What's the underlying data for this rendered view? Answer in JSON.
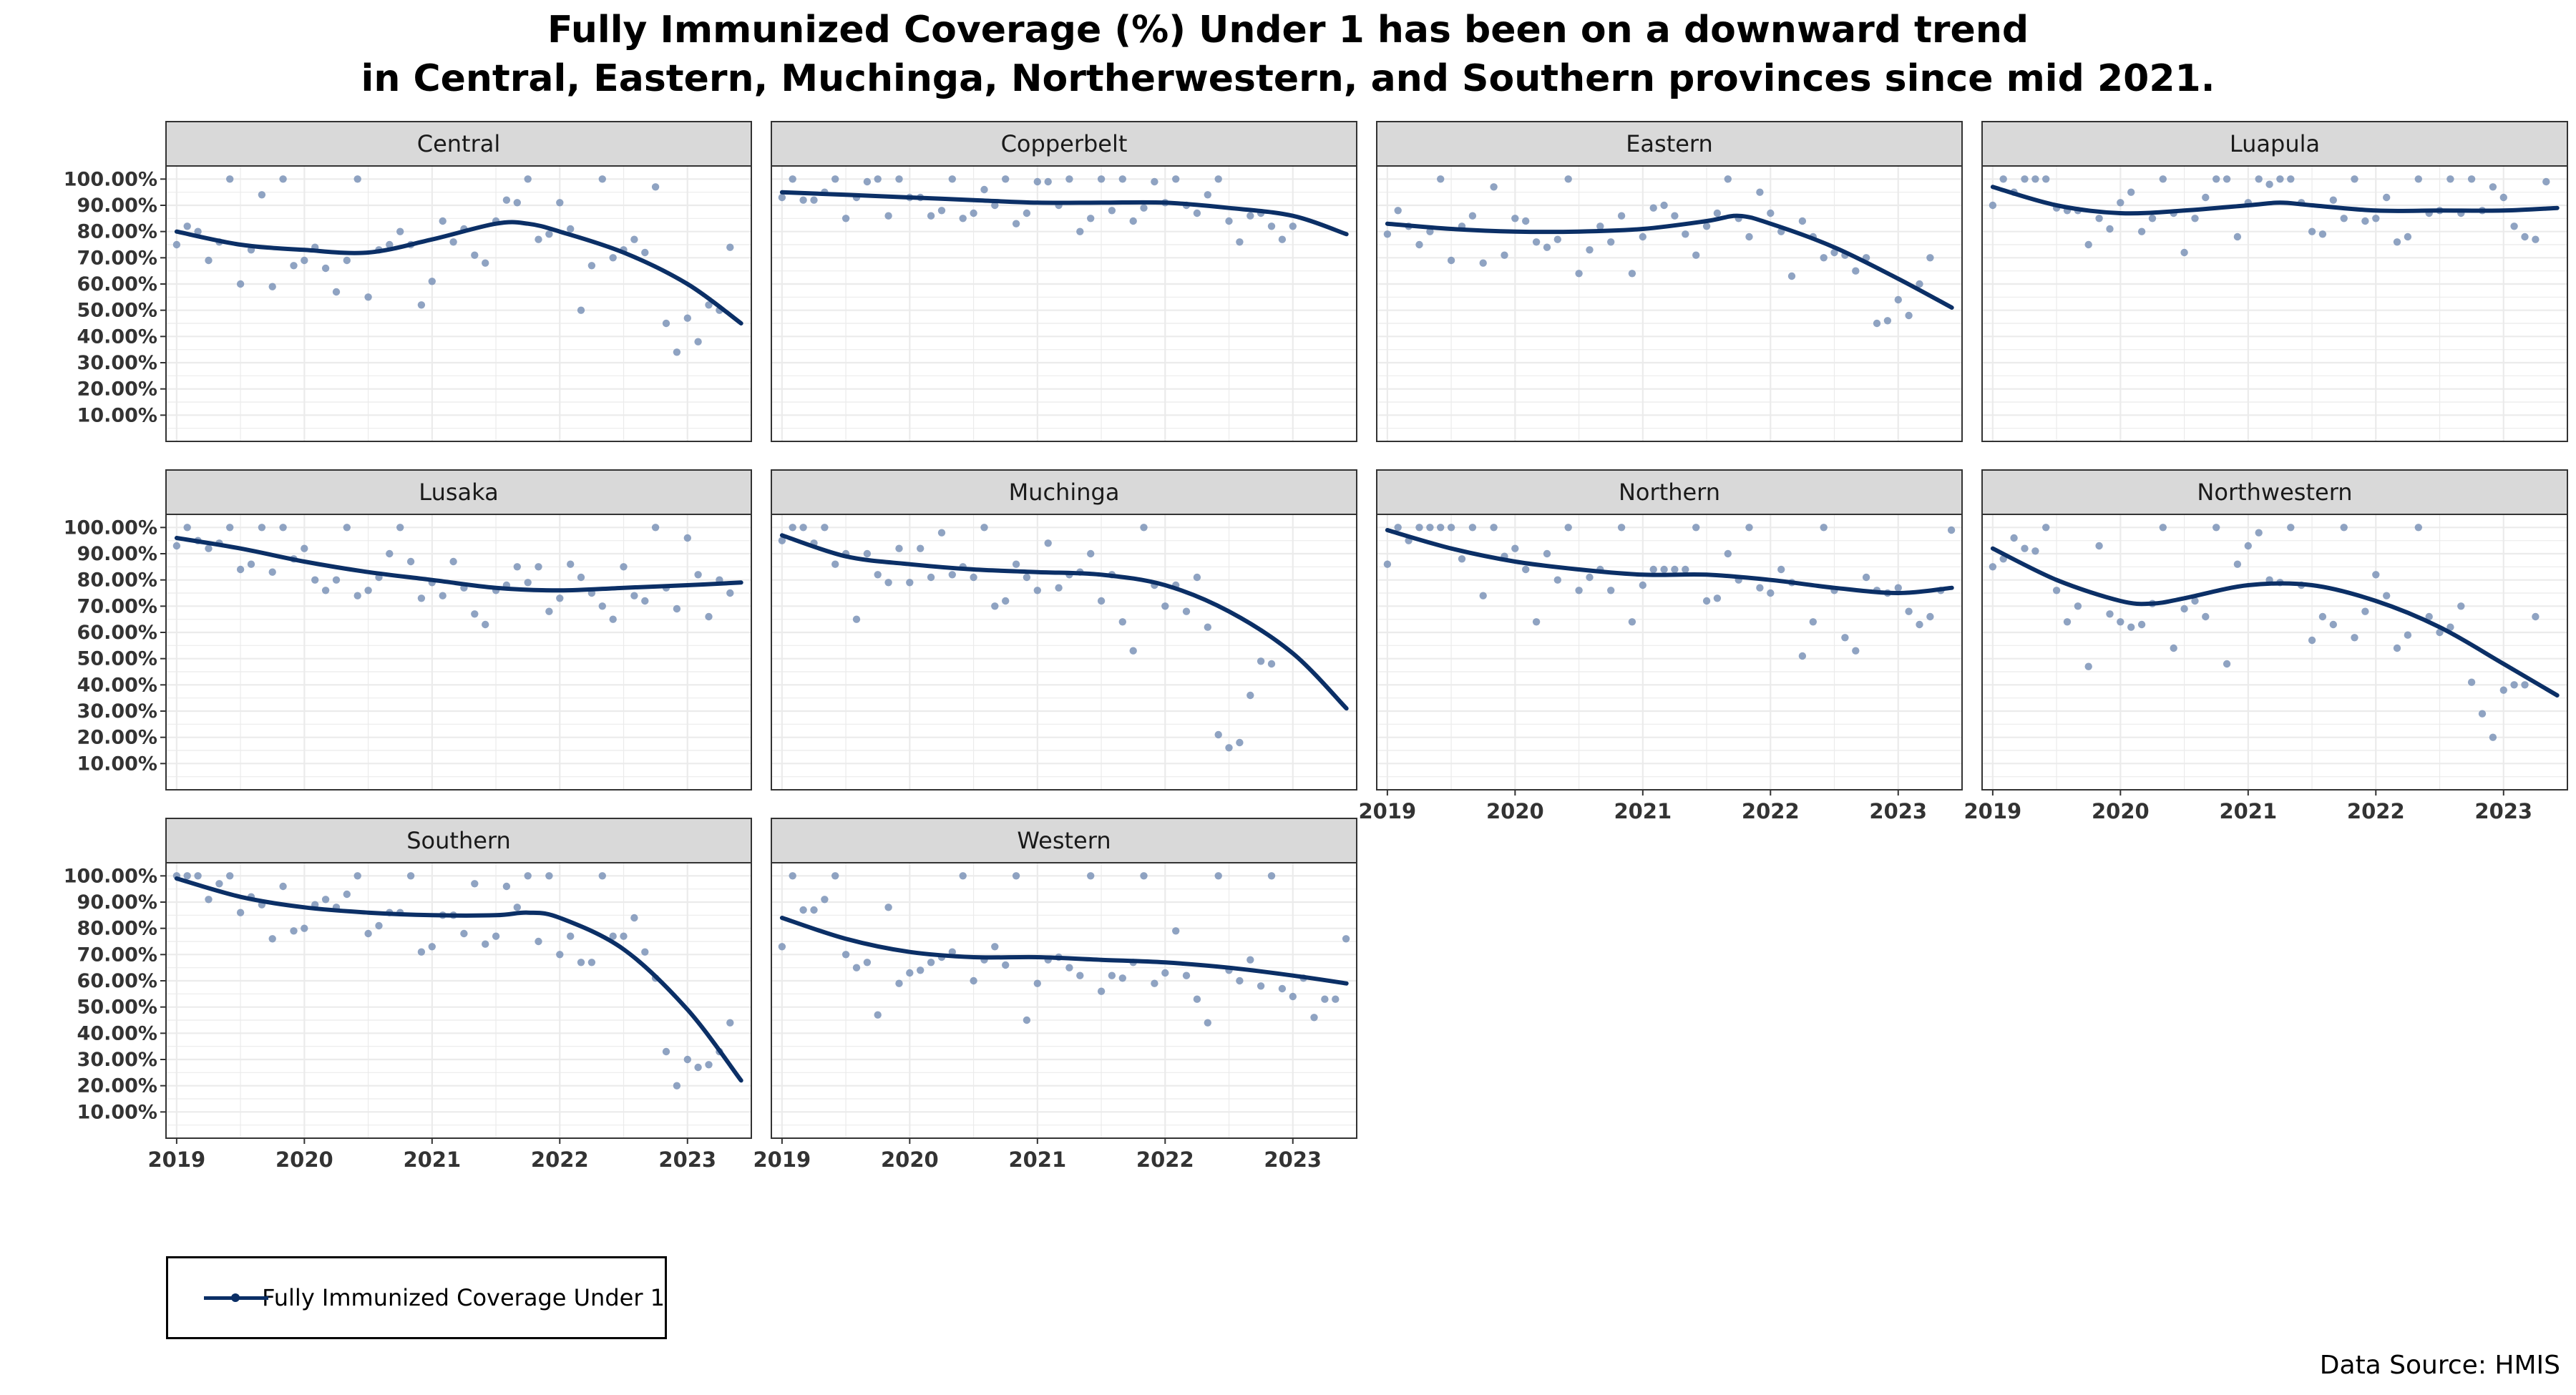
{
  "chart_data": {
    "type": "scatter",
    "title": "Fully Immunized Coverage (%) Under 1 has been on a downward trend\nin Central, Eastern, Muchinga, Northerwestern, and Southern provinces since mid 2021.",
    "title_lines": [
      "Fully Immunized Coverage (%) Under 1 has been on a downward trend",
      "in Central, Eastern, Muchinga, Northerwestern, and Southern provinces since mid 2021."
    ],
    "xlabel": "",
    "ylabel": "",
    "x_ticks": [
      "2019",
      "2020",
      "2021",
      "2022",
      "2023"
    ],
    "y_ticks": [
      "10.00%",
      "20.00%",
      "30.00%",
      "40.00%",
      "50.00%",
      "60.00%",
      "70.00%",
      "80.00%",
      "90.00%",
      "100.00%"
    ],
    "xlim": [
      "2018-12",
      "2023-07"
    ],
    "ylim": [
      0,
      105
    ],
    "grid": true,
    "legend": {
      "position": "bottom-left",
      "label": "Fully Immunized Coverage Under 1"
    },
    "source": "Data Source: HMIS",
    "colors": {
      "line": "#0b2f66",
      "points": "#7b93b7",
      "strip": "#d9d9d9",
      "grid": "#ebebeb"
    },
    "panels": [
      {
        "name": "Central",
        "values": [
          75,
          82,
          80,
          69,
          76,
          100,
          60,
          73,
          94,
          59,
          100,
          67,
          69,
          74,
          66,
          57,
          69,
          100,
          55,
          73,
          75,
          80,
          75,
          52,
          61,
          84,
          76,
          81,
          71,
          68,
          84,
          92,
          91,
          100,
          77,
          79,
          91,
          81,
          50,
          67,
          100,
          70,
          73,
          77,
          72,
          97,
          45,
          34,
          47,
          38,
          52,
          50,
          74
        ],
        "trend": [
          [
            2019.0,
            80
          ],
          [
            2019.5,
            75
          ],
          [
            2020.0,
            73
          ],
          [
            2020.5,
            72
          ],
          [
            2021.0,
            77
          ],
          [
            2021.5,
            83
          ],
          [
            2021.75,
            83
          ],
          [
            2022.0,
            80
          ],
          [
            2022.5,
            72
          ],
          [
            2023.0,
            60
          ],
          [
            2023.42,
            45
          ]
        ]
      },
      {
        "name": "Copperbelt",
        "values": [
          93,
          100,
          92,
          92,
          95,
          100,
          85,
          93,
          99,
          100,
          86,
          100,
          93,
          93,
          86,
          88,
          100,
          85,
          87,
          96,
          90,
          100,
          83,
          87,
          99,
          99,
          90,
          100,
          80,
          85,
          100,
          88,
          100,
          84,
          89,
          99,
          91,
          100,
          90,
          87,
          94,
          100,
          84,
          76,
          86,
          87,
          82,
          77,
          82
        ],
        "trend": [
          [
            2019.0,
            95
          ],
          [
            2019.5,
            94
          ],
          [
            2020.0,
            93
          ],
          [
            2020.5,
            92
          ],
          [
            2021.0,
            91
          ],
          [
            2021.5,
            91
          ],
          [
            2022.0,
            91
          ],
          [
            2022.5,
            89
          ],
          [
            2023.0,
            86
          ],
          [
            2023.42,
            79
          ]
        ]
      },
      {
        "name": "Eastern",
        "values": [
          79,
          88,
          82,
          75,
          80,
          100,
          69,
          82,
          86,
          68,
          97,
          71,
          85,
          84,
          76,
          74,
          77,
          100,
          64,
          73,
          82,
          76,
          86,
          64,
          78,
          89,
          90,
          86,
          79,
          71,
          82,
          87,
          100,
          85,
          78,
          95,
          87,
          80,
          63,
          84,
          78,
          70,
          72,
          71,
          65,
          70,
          45,
          46,
          54,
          48,
          60,
          70
        ],
        "trend": [
          [
            2019.0,
            83
          ],
          [
            2019.5,
            81
          ],
          [
            2020.0,
            80
          ],
          [
            2020.5,
            80
          ],
          [
            2021.0,
            81
          ],
          [
            2021.5,
            84
          ],
          [
            2021.75,
            86
          ],
          [
            2022.0,
            83
          ],
          [
            2022.5,
            74
          ],
          [
            2023.0,
            62
          ],
          [
            2023.42,
            51
          ]
        ]
      },
      {
        "name": "Luapula",
        "values": [
          90,
          100,
          95,
          100,
          100,
          100,
          89,
          88,
          88,
          75,
          85,
          81,
          91,
          95,
          80,
          85,
          100,
          87,
          72,
          85,
          93,
          100,
          100,
          78,
          91,
          100,
          98,
          100,
          100,
          91,
          80,
          79,
          92,
          85,
          100,
          84,
          85,
          93,
          76,
          78,
          100,
          87,
          88,
          100,
          87,
          100,
          88,
          97,
          93,
          82,
          78,
          77,
          99
        ],
        "trend": [
          [
            2019.0,
            97
          ],
          [
            2019.5,
            90
          ],
          [
            2020.0,
            87
          ],
          [
            2020.5,
            88
          ],
          [
            2021.0,
            90
          ],
          [
            2021.25,
            91
          ],
          [
            2021.5,
            90
          ],
          [
            2022.0,
            88
          ],
          [
            2022.5,
            88
          ],
          [
            2023.0,
            88
          ],
          [
            2023.42,
            89
          ]
        ]
      },
      {
        "name": "Lusaka",
        "values": [
          93,
          100,
          95,
          92,
          94,
          100,
          84,
          86,
          100,
          83,
          100,
          88,
          92,
          80,
          76,
          80,
          100,
          74,
          76,
          81,
          90,
          100,
          87,
          73,
          79,
          74,
          87,
          77,
          67,
          63,
          76,
          78,
          85,
          79,
          85,
          68,
          73,
          86,
          81,
          75,
          70,
          65,
          85,
          74,
          72,
          100,
          77,
          69,
          96,
          82,
          66,
          80,
          75
        ],
        "trend": [
          [
            2019.0,
            96
          ],
          [
            2019.5,
            92
          ],
          [
            2020.0,
            87
          ],
          [
            2020.5,
            83
          ],
          [
            2021.0,
            80
          ],
          [
            2021.5,
            77
          ],
          [
            2022.0,
            76
          ],
          [
            2022.5,
            77
          ],
          [
            2023.0,
            78
          ],
          [
            2023.42,
            79
          ]
        ]
      },
      {
        "name": "Muchinga",
        "values": [
          95,
          100,
          100,
          94,
          100,
          86,
          90,
          65,
          90,
          82,
          79,
          92,
          79,
          92,
          81,
          98,
          82,
          85,
          81,
          100,
          70,
          72,
          86,
          81,
          76,
          94,
          77,
          82,
          83,
          90,
          72,
          82,
          64,
          53,
          100,
          78,
          70,
          78,
          68,
          81,
          62,
          21,
          16,
          18,
          36,
          49,
          48
        ],
        "trend": [
          [
            2019.0,
            97
          ],
          [
            2019.5,
            89
          ],
          [
            2020.0,
            86
          ],
          [
            2020.5,
            84
          ],
          [
            2021.0,
            83
          ],
          [
            2021.5,
            82
          ],
          [
            2022.0,
            78
          ],
          [
            2022.5,
            68
          ],
          [
            2023.0,
            52
          ],
          [
            2023.42,
            31
          ]
        ]
      },
      {
        "name": "Northern",
        "values": [
          86,
          100,
          95,
          100,
          100,
          100,
          100,
          88,
          100,
          74,
          100,
          89,
          92,
          84,
          64,
          90,
          80,
          100,
          76,
          81,
          84,
          76,
          100,
          64,
          78,
          84,
          84,
          84,
          84,
          100,
          72,
          73,
          90,
          80,
          100,
          77,
          75,
          84,
          79,
          51,
          64,
          100,
          76,
          58,
          53,
          81,
          76,
          75,
          77,
          68,
          63,
          66,
          76,
          99
        ],
        "trend": [
          [
            2019.0,
            99
          ],
          [
            2019.5,
            92
          ],
          [
            2020.0,
            87
          ],
          [
            2020.5,
            84
          ],
          [
            2021.0,
            82
          ],
          [
            2021.5,
            82
          ],
          [
            2022.0,
            80
          ],
          [
            2022.5,
            77
          ],
          [
            2023.0,
            75
          ],
          [
            2023.42,
            77
          ]
        ]
      },
      {
        "name": "Northwestern",
        "values": [
          85,
          88,
          96,
          92,
          91,
          100,
          76,
          64,
          70,
          47,
          93,
          67,
          64,
          62,
          63,
          71,
          100,
          54,
          69,
          72,
          66,
          100,
          48,
          86,
          93,
          98,
          80,
          79,
          100,
          78,
          57,
          66,
          63,
          100,
          58,
          68,
          82,
          74,
          54,
          59,
          100,
          66,
          60,
          62,
          70,
          41,
          29,
          20,
          38,
          40,
          40,
          66
        ],
        "trend": [
          [
            2019.0,
            92
          ],
          [
            2019.5,
            80
          ],
          [
            2020.0,
            72
          ],
          [
            2020.25,
            71
          ],
          [
            2020.5,
            73
          ],
          [
            2021.0,
            78
          ],
          [
            2021.5,
            78
          ],
          [
            2022.0,
            72
          ],
          [
            2022.5,
            62
          ],
          [
            2023.0,
            48
          ],
          [
            2023.42,
            36
          ]
        ]
      },
      {
        "name": "Southern",
        "values": [
          100,
          100,
          100,
          91,
          97,
          100,
          86,
          92,
          89,
          76,
          96,
          79,
          80,
          89,
          91,
          88,
          93,
          100,
          78,
          81,
          86,
          86,
          100,
          71,
          73,
          85,
          85,
          78,
          97,
          74,
          77,
          96,
          88,
          100,
          75,
          100,
          70,
          77,
          67,
          67,
          100,
          77,
          77,
          84,
          71,
          61,
          33,
          20,
          30,
          27,
          28,
          33,
          44
        ],
        "trend": [
          [
            2019.0,
            99
          ],
          [
            2019.5,
            92
          ],
          [
            2020.0,
            88
          ],
          [
            2020.5,
            86
          ],
          [
            2021.0,
            85
          ],
          [
            2021.5,
            85
          ],
          [
            2021.75,
            86
          ],
          [
            2022.0,
            84
          ],
          [
            2022.5,
            72
          ],
          [
            2023.0,
            49
          ],
          [
            2023.42,
            22
          ]
        ]
      },
      {
        "name": "Western",
        "values": [
          73,
          100,
          87,
          87,
          91,
          100,
          70,
          65,
          67,
          47,
          88,
          59,
          63,
          64,
          67,
          69,
          71,
          100,
          60,
          68,
          73,
          66,
          100,
          45,
          59,
          68,
          69,
          65,
          62,
          100,
          56,
          62,
          61,
          67,
          100,
          59,
          63,
          79,
          62,
          53,
          44,
          100,
          64,
          60,
          68,
          58,
          100,
          57,
          54,
          61,
          46,
          53,
          53,
          76
        ],
        "trend": [
          [
            2019.0,
            84
          ],
          [
            2019.5,
            76
          ],
          [
            2020.0,
            71
          ],
          [
            2020.5,
            69
          ],
          [
            2021.0,
            69
          ],
          [
            2021.5,
            68
          ],
          [
            2022.0,
            67
          ],
          [
            2022.5,
            65
          ],
          [
            2023.0,
            62
          ],
          [
            2023.42,
            59
          ]
        ]
      }
    ]
  }
}
